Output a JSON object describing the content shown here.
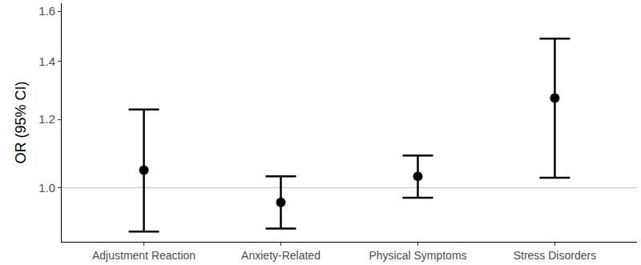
{
  "chart_data": {
    "type": "errorbar",
    "y_label": "OR (95% CI)",
    "categories": [
      "Adjustment Reaction",
      "Anxiety-Related",
      "Physical Symptoms",
      "Stress Disorders"
    ],
    "values": [
      1.048,
      0.962,
      1.031,
      1.27
    ],
    "lower": [
      0.89,
      0.897,
      0.974,
      1.027
    ],
    "upper": [
      1.232,
      1.031,
      1.09,
      1.488
    ],
    "color": "#000000",
    "marker": "circle",
    "log": "y",
    "ylim": [
      0.866,
      1.635
    ],
    "yticks": [
      {
        "value": 1,
        "label": "1.0"
      },
      1.2,
      1.4,
      1.6
    ],
    "reference_line": 1,
    "grid": false
  }
}
